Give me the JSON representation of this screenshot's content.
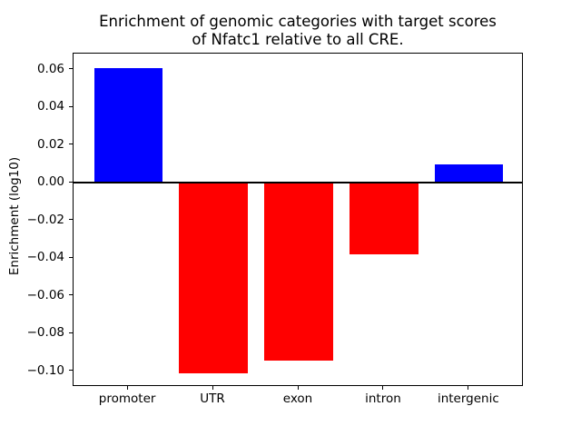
{
  "chart_data": {
    "type": "bar",
    "title": "Enrichment of genomic categories with target scores\nof Nfatc1 relative to all CRE.",
    "title_lines": [
      "Enrichment of genomic categories with target scores",
      "of Nfatc1 relative to all CRE."
    ],
    "xlabel": "",
    "ylabel": "Enrichment (log10)",
    "categories": [
      "promoter",
      "UTR",
      "exon",
      "intron",
      "intergenic"
    ],
    "values": [
      0.061,
      -0.101,
      -0.094,
      -0.038,
      0.01
    ],
    "bar_colors": [
      "#0000ff",
      "#ff0000",
      "#ff0000",
      "#ff0000",
      "#0000ff"
    ],
    "positive_color": "#0000ff",
    "negative_color": "#ff0000",
    "bar_width": 0.8,
    "xlim": [
      -0.64,
      4.64
    ],
    "ylim": [
      -0.1082,
      0.0686
    ],
    "yticks": [
      0.06,
      0.04,
      0.02,
      0.0,
      -0.02,
      -0.04,
      -0.06,
      -0.08,
      -0.1
    ],
    "ytick_labels": [
      "0.06",
      "0.04",
      "0.02",
      "0.00",
      "−0.02",
      "−0.04",
      "−0.06",
      "−0.08",
      "−0.10"
    ],
    "zero_line": true,
    "grid": false,
    "legend": null,
    "background_color": "#ffffff",
    "axis_color": "#000000"
  }
}
